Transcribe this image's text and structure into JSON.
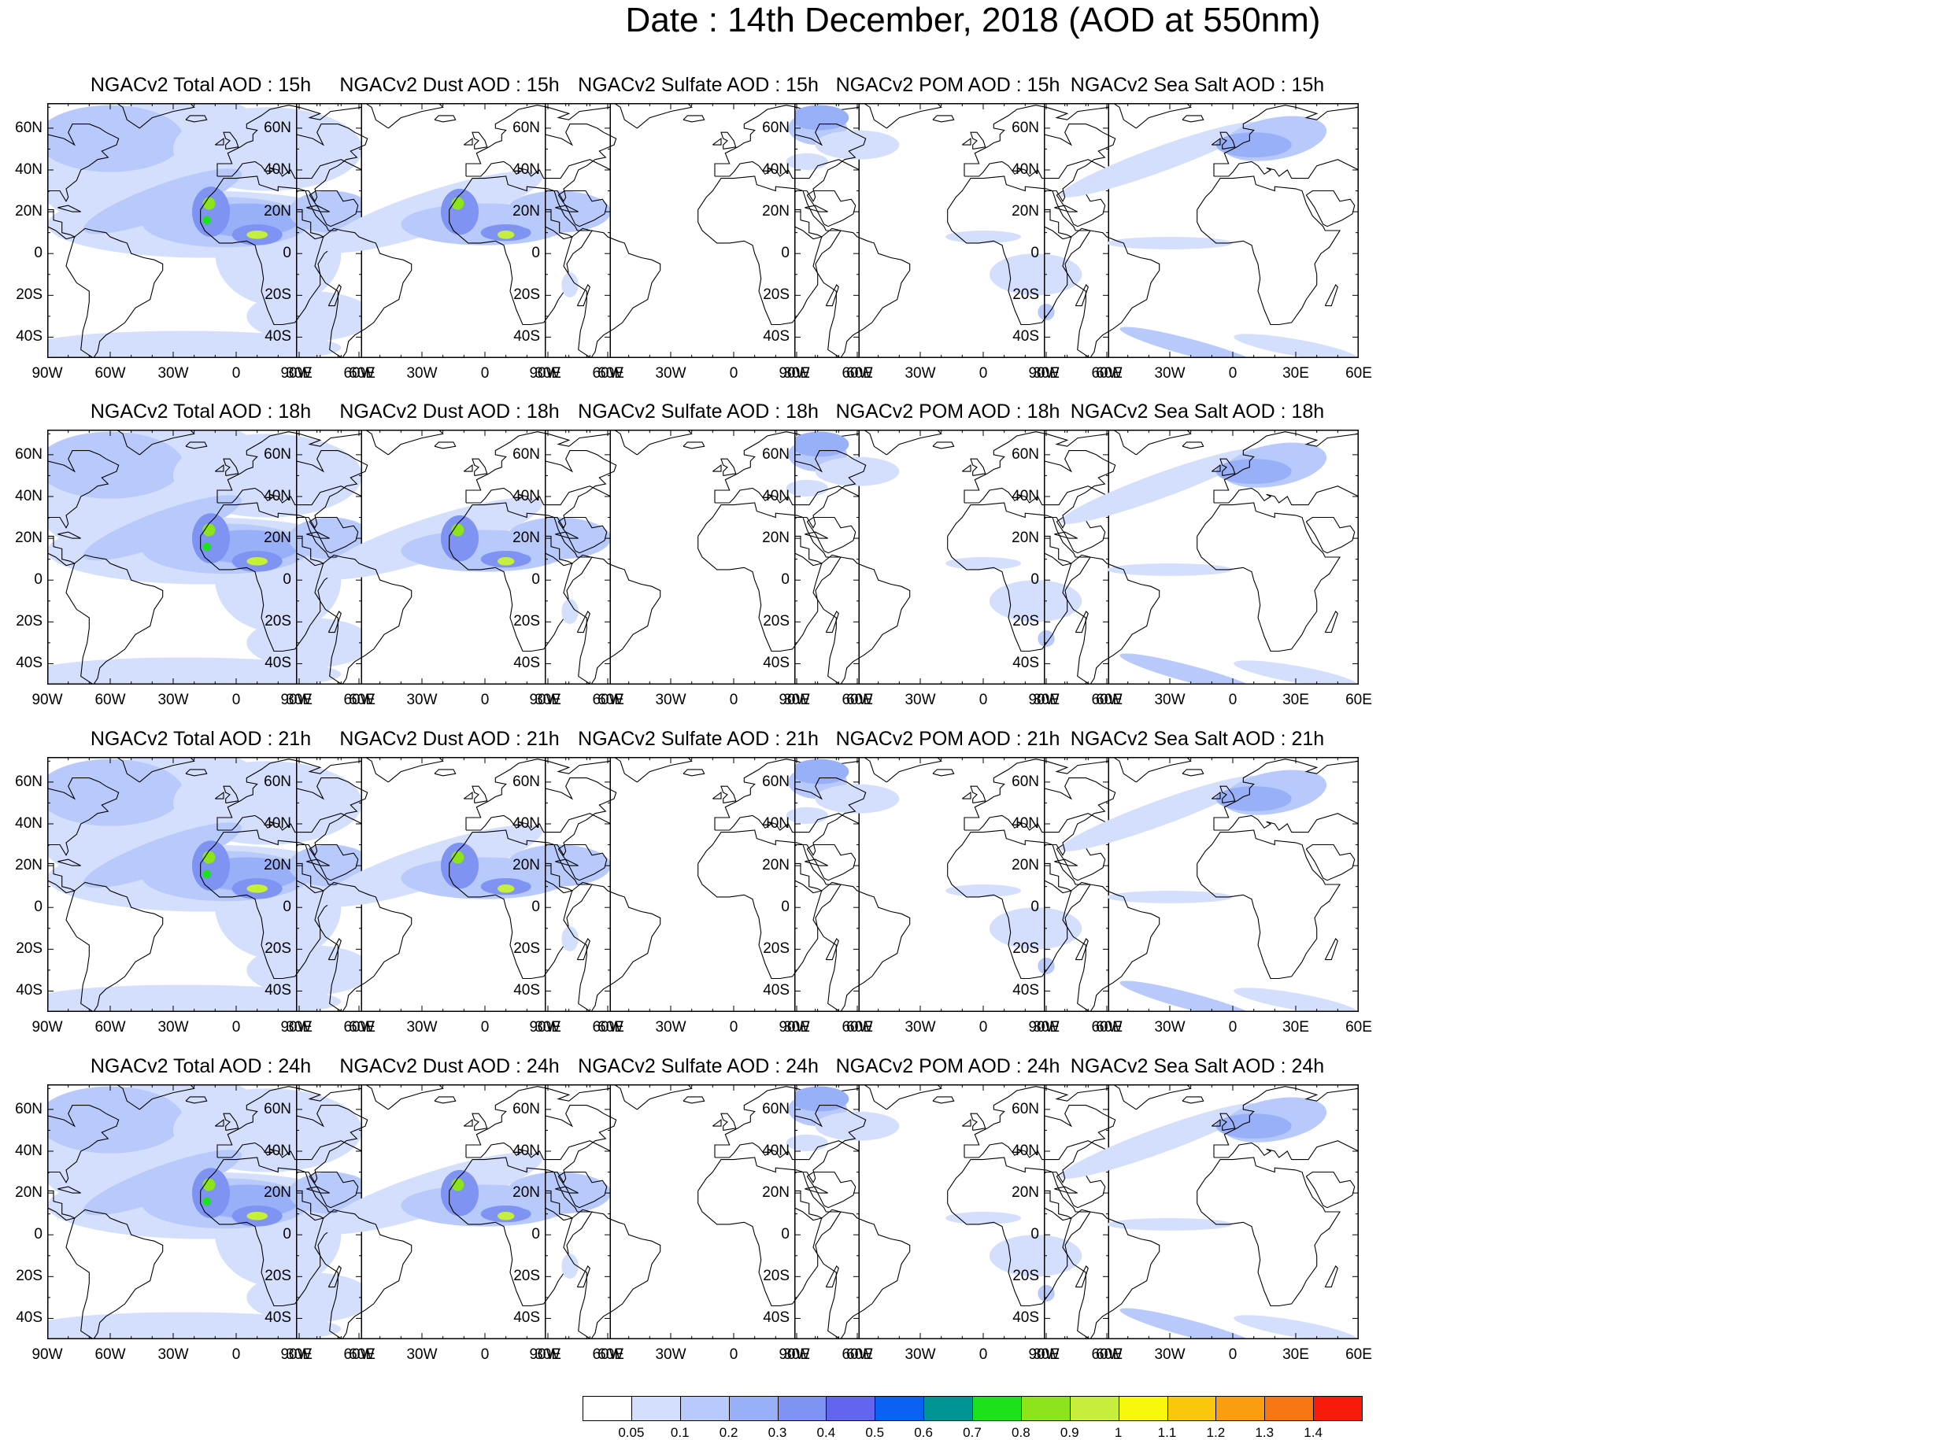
{
  "title": "Date : 14th December, 2018 (AOD at 550nm)",
  "lat_ticks": [
    "60N",
    "40N",
    "20N",
    "0",
    "20S",
    "40S"
  ],
  "lon_ticks": [
    "90W",
    "60W",
    "30W",
    "0",
    "30E",
    "60E"
  ],
  "map_extent": {
    "lon": [
      -90,
      60
    ],
    "lat": [
      -50,
      72
    ]
  },
  "panels": [
    {
      "title": "NGACv2 Total AOD : 15h",
      "species": "total",
      "hour": "15h"
    },
    {
      "title": "NGACv2 Dust AOD : 15h",
      "species": "dust",
      "hour": "15h"
    },
    {
      "title": "NGACv2 Sulfate AOD : 15h",
      "species": "sulfate",
      "hour": "15h"
    },
    {
      "title": "NGACv2 POM AOD : 15h",
      "species": "pom",
      "hour": "15h"
    },
    {
      "title": "NGACv2 Sea Salt AOD : 15h",
      "species": "seasalt",
      "hour": "15h"
    },
    {
      "title": "NGACv2 Total AOD : 18h",
      "species": "total",
      "hour": "18h"
    },
    {
      "title": "NGACv2 Dust AOD : 18h",
      "species": "dust",
      "hour": "18h"
    },
    {
      "title": "NGACv2 Sulfate AOD : 18h",
      "species": "sulfate",
      "hour": "18h"
    },
    {
      "title": "NGACv2 POM AOD : 18h",
      "species": "pom",
      "hour": "18h"
    },
    {
      "title": "NGACv2 Sea Salt AOD : 18h",
      "species": "seasalt",
      "hour": "18h"
    },
    {
      "title": "NGACv2 Total AOD : 21h",
      "species": "total",
      "hour": "21h"
    },
    {
      "title": "NGACv2 Dust AOD : 21h",
      "species": "dust",
      "hour": "21h"
    },
    {
      "title": "NGACv2 Sulfate AOD : 21h",
      "species": "sulfate",
      "hour": "21h"
    },
    {
      "title": "NGACv2 POM AOD : 21h",
      "species": "pom",
      "hour": "21h"
    },
    {
      "title": "NGACv2 Sea Salt AOD : 21h",
      "species": "seasalt",
      "hour": "21h"
    },
    {
      "title": "NGACv2 Total AOD : 24h",
      "species": "total",
      "hour": "24h"
    },
    {
      "title": "NGACv2 Dust AOD : 24h",
      "species": "dust",
      "hour": "24h"
    },
    {
      "title": "NGACv2 Sulfate AOD : 24h",
      "species": "sulfate",
      "hour": "24h"
    },
    {
      "title": "NGACv2 POM AOD : 24h",
      "species": "pom",
      "hour": "24h"
    },
    {
      "title": "NGACv2 Sea Salt  AOD : 24h",
      "species": "seasalt",
      "hour": "24h"
    }
  ],
  "colorbar": {
    "labels": [
      "0.05",
      "0.1",
      "0.2",
      "0.3",
      "0.4",
      "0.5",
      "0.6",
      "0.7",
      "0.8",
      "0.9",
      "1",
      "1.1",
      "1.2",
      "1.3",
      "1.4"
    ],
    "colors": [
      "#ffffff",
      "#d4dffd",
      "#b8c9fb",
      "#98b0f8",
      "#7f93f3",
      "#6266ee",
      "#0a61f2",
      "#019494",
      "#1ce21c",
      "#8be51a",
      "#c5ef3c",
      "#f7f70c",
      "#f9c70c",
      "#fa9e0f",
      "#f67712",
      "#f81b0b"
    ]
  }
}
